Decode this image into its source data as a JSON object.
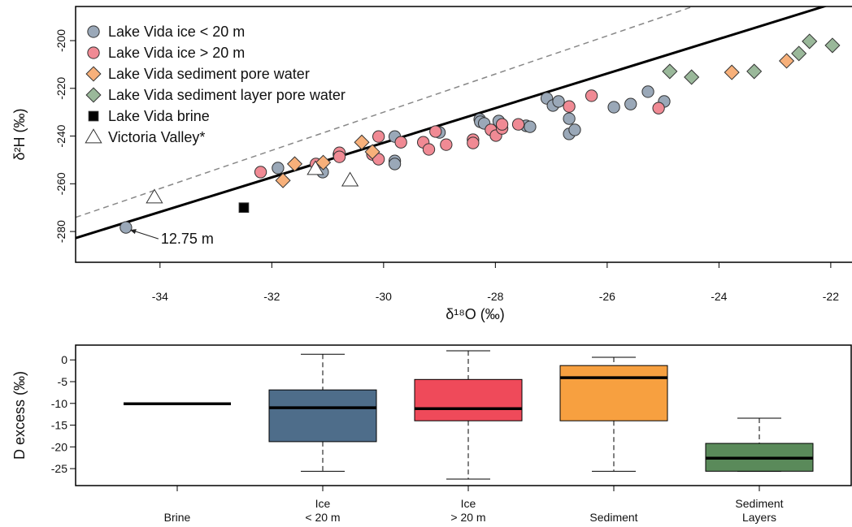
{
  "chart_data": [
    {
      "type": "scatter",
      "xlabel": "δ¹⁸O (‰)",
      "ylabel": "δ²H (‰)",
      "xlim": [
        -35.51,
        -21.62
      ],
      "ylim": [
        -292.9,
        -185.7
      ],
      "xticks": [
        -34,
        -32,
        -30,
        -28,
        -26,
        -24,
        -22
      ],
      "yticks": [
        -280,
        -260,
        -240,
        -220,
        -200
      ],
      "legend": "upper left",
      "reference_lines": [
        {
          "slope": 8,
          "intercept": 10,
          "style": "dashed",
          "color": "#888888"
        },
        {
          "slope": 7.25,
          "intercept": -25.3,
          "style": "solid",
          "color": "#000000"
        }
      ],
      "annotation": {
        "text": "12.75 m",
        "x": -34.61,
        "y": -278.3
      },
      "series": [
        {
          "name": "Lake Vida ice < 20 m",
          "color": "#9aa8b8",
          "marker": "circle",
          "x": [
            -34.61,
            -31.89,
            -31.09,
            -30.8,
            -29.8,
            -29.8,
            -29.8,
            -29.0,
            -28.28,
            -28.27,
            -28.2,
            -27.94,
            -27.45,
            -27.38,
            -27.08,
            -26.97,
            -26.87,
            -26.68,
            -26.68,
            -26.58,
            -25.88,
            -25.58,
            -25.27,
            -24.98
          ],
          "y": [
            -278.3,
            -253.4,
            -255.1,
            -247.7,
            -240.2,
            -250.4,
            -251.7,
            -238.5,
            -233.0,
            -234.0,
            -234.7,
            -233.7,
            -235.7,
            -236.1,
            -224.2,
            -227.2,
            -225.5,
            -232.7,
            -239.1,
            -237.4,
            -227.9,
            -226.6,
            -221.4,
            -225.5
          ]
        },
        {
          "name": "Lake Vida ice > 20 m",
          "color": "#f08a94",
          "marker": "circle",
          "x": [
            -32.2,
            -31.21,
            -30.79,
            -30.79,
            -30.2,
            -30.09,
            -30.09,
            -29.69,
            -29.29,
            -29.19,
            -29.07,
            -28.88,
            -28.4,
            -28.4,
            -28.08,
            -27.99,
            -27.88,
            -27.88,
            -27.59,
            -26.68,
            -26.28,
            -25.08
          ],
          "y": [
            -255.1,
            -251.7,
            -247.0,
            -248.7,
            -247.7,
            -240.2,
            -249.7,
            -242.6,
            -242.6,
            -245.6,
            -238.1,
            -243.6,
            -241.5,
            -242.9,
            -237.4,
            -239.8,
            -236.8,
            -235.1,
            -235.1,
            -227.6,
            -223.1,
            -228.3
          ]
        },
        {
          "name": "Lake Vida sediment pore water",
          "color": "#f7b07a",
          "marker": "diamond",
          "x": [
            -31.8,
            -31.59,
            -31.08,
            -30.39,
            -30.2,
            -23.77,
            -22.79
          ],
          "y": [
            -258.6,
            -251.7,
            -251.1,
            -242.6,
            -246.6,
            -213.3,
            -208.5
          ]
        },
        {
          "name": "Lake Vida sediment layer pore water",
          "color": "#9ab89a",
          "marker": "diamond",
          "x": [
            -24.88,
            -24.49,
            -23.37,
            -22.57,
            -22.38,
            -21.97
          ],
          "y": [
            -212.9,
            -215.3,
            -212.9,
            -205.4,
            -200.3,
            -202.0
          ]
        },
        {
          "name": "Lake Vida brine",
          "color": "#000000",
          "marker": "square",
          "x": [
            -32.5
          ],
          "y": [
            -270.0
          ]
        },
        {
          "name": "Victoria Valley*",
          "color": "#ffffff",
          "marker": "triangle",
          "x": [
            -34.1,
            -31.22,
            -30.6
          ],
          "y": [
            -265.7,
            -253.8,
            -258.6
          ]
        }
      ]
    },
    {
      "type": "box",
      "ylabel": "D excess (‰)",
      "ylim": [
        -28.9,
        3.4
      ],
      "yticks": [
        -25,
        -20,
        -15,
        -10,
        -5,
        0
      ],
      "categories": [
        "Brine",
        "Ice\n< 20 m",
        "Ice\n> 20 m",
        "Sediment",
        "Sediment\nLayers"
      ],
      "colors": [
        "#000000",
        "#4e6d8a",
        "#ef4a5a",
        "#f7a040",
        "#5a8a5a"
      ],
      "boxes": [
        {
          "median": -10.1
        },
        {
          "min": -25.6,
          "q1": -18.8,
          "median": -11.0,
          "q3": -6.9,
          "max": 1.3
        },
        {
          "min": -27.4,
          "q1": -14.0,
          "median": -11.2,
          "q3": -4.5,
          "max": 2.1
        },
        {
          "min": -25.6,
          "q1": -14.0,
          "median": -4.1,
          "q3": -1.3,
          "max": 0.6
        },
        {
          "min": -25.6,
          "q1": -25.6,
          "median": -22.6,
          "q3": -19.2,
          "max": -13.4
        }
      ]
    }
  ]
}
